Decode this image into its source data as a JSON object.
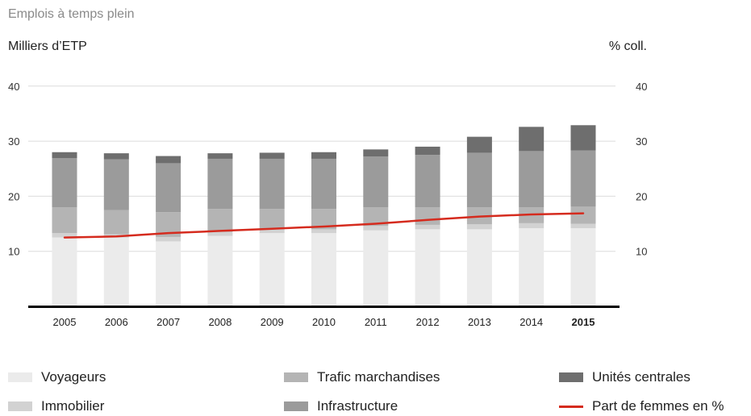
{
  "chart_data": {
    "type": "bar",
    "title": "Emplois à temps plein",
    "ylabel_left": "Milliers d’ETP",
    "ylabel_right": "% coll.",
    "ylim": [
      0,
      40
    ],
    "yticks": [
      "10",
      "20",
      "30",
      "40"
    ],
    "categories": [
      "2005",
      "2006",
      "2007",
      "2008",
      "2009",
      "2010",
      "2011",
      "2012",
      "2013",
      "2014",
      "2015"
    ],
    "highlight_category": "2015",
    "stacked": true,
    "grid": true,
    "series": [
      {
        "name": "Voyageurs",
        "color": "#ebebeb",
        "values": [
          12.5,
          12.5,
          11.8,
          12.8,
          13.3,
          13.3,
          13.8,
          14.0,
          14.0,
          14.2,
          14.2
        ]
      },
      {
        "name": "Immobilier",
        "color": "#d2d2d2",
        "values": [
          0.8,
          0.6,
          0.8,
          0.7,
          0.7,
          0.7,
          0.8,
          0.8,
          0.9,
          0.9,
          0.8
        ]
      },
      {
        "name": "Trafic marchandises",
        "color": "#b4b4b4",
        "values": [
          4.7,
          4.4,
          4.5,
          4.2,
          3.7,
          3.7,
          3.4,
          3.2,
          3.1,
          2.9,
          3.1
        ]
      },
      {
        "name": "Infrastructure",
        "color": "#9b9b9b",
        "values": [
          8.9,
          9.2,
          8.9,
          9.1,
          9.1,
          9.1,
          9.2,
          9.5,
          9.9,
          10.2,
          10.2
        ]
      },
      {
        "name": "Unités centrales",
        "color": "#6e6e6e",
        "values": [
          1.1,
          1.1,
          1.3,
          1.0,
          1.1,
          1.2,
          1.3,
          1.5,
          2.9,
          4.4,
          4.6
        ]
      }
    ],
    "line_series": {
      "name": "Part de femmes en %",
      "color": "#d52b1e",
      "values": [
        12.5,
        12.7,
        13.3,
        13.7,
        14.1,
        14.5,
        15.0,
        15.7,
        16.3,
        16.7,
        16.9
      ]
    },
    "legend_position": "bottom"
  }
}
